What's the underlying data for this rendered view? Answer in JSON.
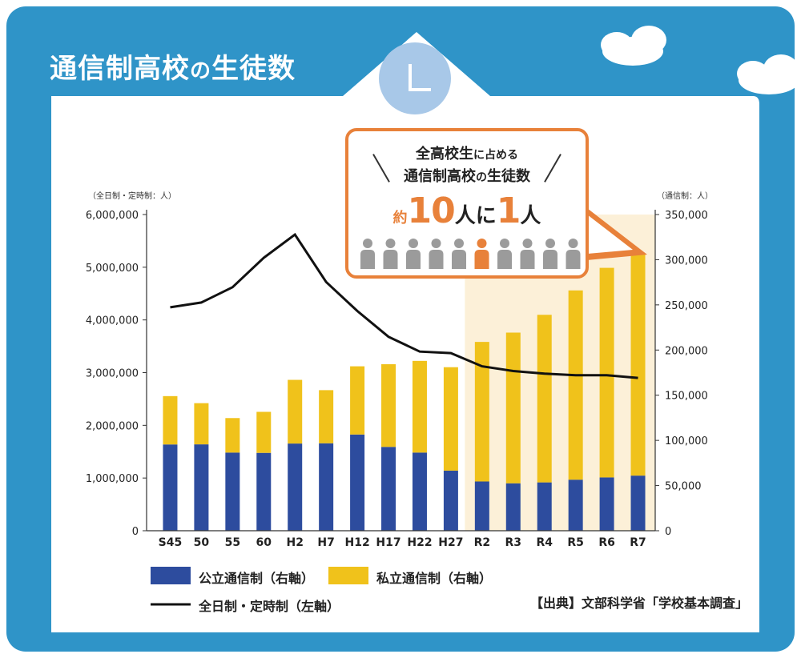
{
  "title_main": "通信制高校",
  "title_no": "の",
  "title_end": "生徒数",
  "callout": {
    "line1_a": "全高校生",
    "line1_b": "に占める",
    "line2_a": "通信制高校",
    "line2_b": "の",
    "line2_c": "生徒数",
    "prefix": "約",
    "num1": "10",
    "mid1": "人に",
    "num2": "1",
    "mid2": "人",
    "highlight_index": 5,
    "count": 10
  },
  "legend": {
    "public": "公立通信制（右軸）",
    "private": "私立通信制（右軸）",
    "line": "全日制・定時制（左軸）"
  },
  "source": "【出典】文部科学省「学校基本調査」",
  "colors": {
    "bg": "#2f94c8",
    "public": "#2d4c9e",
    "private": "#f0c21b",
    "line": "#111111",
    "accent": "#e8813a",
    "highlight_band": "#fcf0d8",
    "person": "#9b9b9b"
  },
  "chart_data": {
    "type": "bar",
    "categories": [
      "S45",
      "50",
      "55",
      "60",
      "H2",
      "H7",
      "H12",
      "H17",
      "H22",
      "H27",
      "R2",
      "R3",
      "R4",
      "R5",
      "R6",
      "R7"
    ],
    "left_axis_label": "（全日制・定時制：人）",
    "right_axis_label": "（通信制：人）",
    "left_ylim": [
      0,
      6000000
    ],
    "right_ylim": [
      0,
      350000
    ],
    "left_ticks": [
      "0",
      "1,000,000",
      "2,000,000",
      "3,000,000",
      "4,000,000",
      "5,000,000",
      "6,000,000"
    ],
    "right_ticks": [
      "0",
      "50,000",
      "100,000",
      "150,000",
      "200,000",
      "250,000",
      "300,000",
      "350,000"
    ],
    "series": [
      {
        "name": "公立通信制（右軸）",
        "axis": "right",
        "values": [
          95500,
          95600,
          86500,
          86200,
          96500,
          96800,
          106500,
          92800,
          86500,
          66500,
          54500,
          52500,
          53500,
          56500,
          59000,
          61000
        ]
      },
      {
        "name": "私立通信制（右軸）",
        "axis": "right",
        "values": [
          53500,
          45600,
          38200,
          45400,
          70500,
          58800,
          75500,
          91500,
          101500,
          114500,
          154500,
          166800,
          185500,
          209500,
          232000,
          245000
        ]
      },
      {
        "name": "全日制・定時制（左軸）",
        "axis": "left",
        "type": "line",
        "values": [
          4240000,
          4330000,
          4620000,
          5180000,
          5620000,
          4720000,
          4170000,
          3680000,
          3400000,
          3370000,
          3120000,
          3030000,
          2980000,
          2950000,
          2950000,
          2900000
        ]
      }
    ],
    "highlight_from": "R2",
    "legend_position": "bottom"
  }
}
